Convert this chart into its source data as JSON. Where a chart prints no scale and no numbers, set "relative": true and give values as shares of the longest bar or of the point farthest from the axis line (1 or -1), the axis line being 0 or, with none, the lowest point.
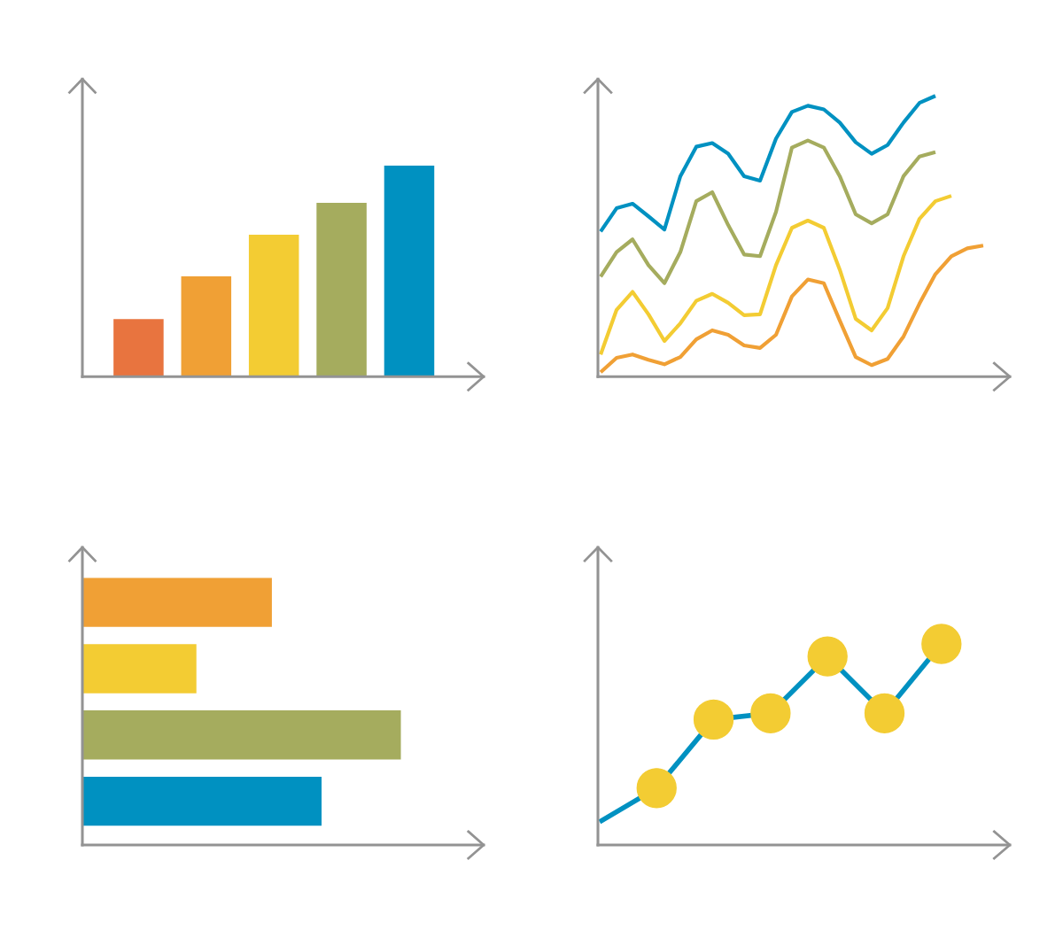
{
  "chart_data": [
    {
      "type": "bar",
      "relative": true,
      "categories": [
        null,
        null,
        null,
        null,
        null
      ],
      "values": [
        0.273,
        0.475,
        0.672,
        0.824,
        1
      ],
      "colors": [
        "#e8743f",
        "#f0a035",
        "#f3cc33",
        "#a5ac5e",
        "#0091c1"
      ]
    },
    {
      "type": "line",
      "relative": true,
      "line_style": "solid",
      "categories": [
        null,
        null,
        null,
        null,
        null,
        null,
        null,
        null,
        null,
        null,
        null,
        null,
        null,
        null,
        null,
        null,
        null,
        null,
        null,
        null,
        null,
        null,
        null,
        null,
        null
      ],
      "series": [
        {
          "color": "#0091c1",
          "values": [
            0.517,
            0.6,
            0.616,
            0.571,
            0.524,
            0.714,
            0.819,
            0.832,
            0.794,
            0.714,
            0.698,
            0.848,
            0.943,
            0.965,
            0.952,
            0.905,
            0.835,
            0.794,
            0.825,
            0.905,
            0.975,
            1,
            null,
            null,
            null
          ]
        },
        {
          "color": "#a5ac5e",
          "values": [
            0.356,
            0.444,
            0.489,
            0.397,
            0.333,
            0.444,
            0.625,
            0.657,
            0.54,
            0.435,
            0.429,
            0.587,
            0.816,
            0.841,
            0.816,
            0.714,
            0.578,
            0.546,
            0.578,
            0.714,
            0.784,
            0.8,
            null,
            null,
            null
          ]
        },
        {
          "color": "#f3cc33",
          "values": [
            0.079,
            0.238,
            0.302,
            0.222,
            0.127,
            0.19,
            0.27,
            0.295,
            0.263,
            0.219,
            0.222,
            0.397,
            0.53,
            0.556,
            0.53,
            0.381,
            0.206,
            0.165,
            0.244,
            0.429,
            0.562,
            0.625,
            0.644,
            null,
            null
          ]
        },
        {
          "color": "#f0a035",
          "values": [
            0.016,
            0.067,
            0.079,
            0.06,
            0.044,
            0.07,
            0.133,
            0.165,
            0.149,
            0.111,
            0.102,
            0.149,
            0.286,
            0.346,
            0.333,
            0.2,
            0.07,
            0.041,
            0.063,
            0.143,
            0.26,
            0.365,
            0.429,
            0.457,
            0.467
          ]
        }
      ]
    },
    {
      "type": "bar",
      "orientation": "horizontal",
      "relative": true,
      "categories": [
        null,
        null,
        null,
        null
      ],
      "values": [
        0.595,
        0.358,
        1,
        0.751
      ],
      "colors": [
        "#f0a035",
        "#f3cc33",
        "#a5ac5e",
        "#0091c1"
      ]
    },
    {
      "type": "line",
      "relative": true,
      "categories": [
        null,
        null,
        null,
        null,
        null,
        null,
        null
      ],
      "series": [
        {
          "type": "line",
          "color": "#0091c1",
          "marker": "circle",
          "colors": [
            null,
            "#f3cc33",
            "#f3cc33",
            "#f3cc33",
            "#f3cc33",
            "#f3cc33",
            "#f3cc33"
          ],
          "values": [
            0.115,
            0.283,
            0.624,
            0.655,
            0.938,
            0.655,
            1
          ]
        }
      ]
    }
  ]
}
